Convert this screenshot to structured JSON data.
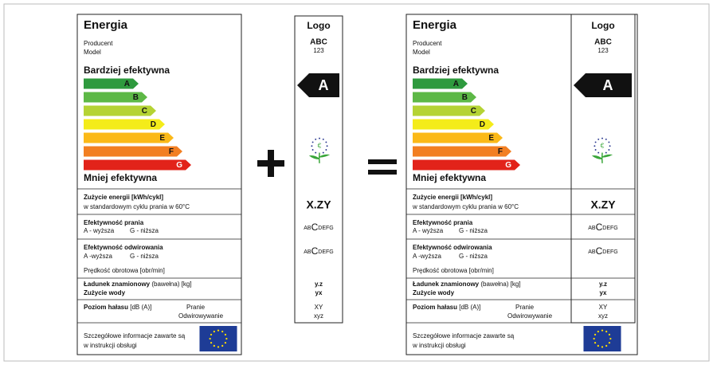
{
  "label": {
    "title": "Energia",
    "producer": "Producent",
    "model": "Model",
    "more_efficient": "Bardziej efektywna",
    "classes": [
      {
        "label": "A",
        "color": "#2e9a3e"
      },
      {
        "label": "B",
        "color": "#5db846"
      },
      {
        "label": "C",
        "color": "#b5d334"
      },
      {
        "label": "D",
        "color": "#f4ec1a"
      },
      {
        "label": "E",
        "color": "#fbb918"
      },
      {
        "label": "F",
        "color": "#f27f22"
      },
      {
        "label": "G",
        "color": "#e2231a"
      }
    ],
    "less_efficient": "Mniej efektywna",
    "energy": {
      "title": "Zużycie energii [kWh/cykl]",
      "note": "w standardowym cyklu prania w 60°C"
    },
    "washing": {
      "title": "Efektywność prania",
      "best": "A - wyższa",
      "worst": "G - niższa"
    },
    "spin": {
      "title": "Efektywność odwirowania",
      "best": "A -wyższa",
      "worst": "G - niższa",
      "speed": "Prędkość obrotowa [obr/min]"
    },
    "capacity": {
      "title": "Ładunek znamionowy",
      "note": "(bawełna) [kg]",
      "water": "Zużycie wody"
    },
    "noise": {
      "title": "Poziom hałasu",
      "unit": "[dB (A)]",
      "washing": "Pranie",
      "spinning": "Odwirowywanie"
    },
    "info": [
      "Szczegółowe informacje zawarte są",
      "w instrukcji obsługi"
    ]
  },
  "strip": {
    "logo": "Logo",
    "brand": "ABC",
    "code": "123",
    "class": "A",
    "energy": "X.ZY",
    "washing_class": [
      "AB",
      "C",
      "DEFG"
    ],
    "spin_class": [
      "AB",
      "C",
      "DEFG"
    ],
    "capacity": "y.z",
    "water": "yx",
    "noise_washing": "XY",
    "noise_spinning": "xyz"
  }
}
